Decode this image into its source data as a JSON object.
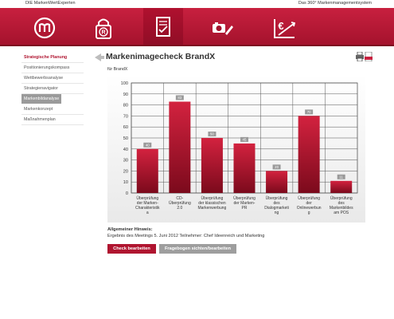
{
  "header": {
    "left_text": "DIE MarkenWertExperten",
    "right_text": "Das 360° Markenmanagementsystem"
  },
  "nav": {
    "items": [
      {
        "icon": "brand-m-icon"
      },
      {
        "icon": "registered-lock-icon"
      },
      {
        "icon": "checklist-icon",
        "active": true
      },
      {
        "icon": "camera-pencil-icon"
      },
      {
        "icon": "euro-growth-icon"
      }
    ]
  },
  "sidebar": {
    "items": [
      {
        "label": "Strategische Planung",
        "type": "header"
      },
      {
        "label": "Positionierungskompass"
      },
      {
        "label": "Wettbewerbsanalyse"
      },
      {
        "label": "Strategienavigator"
      },
      {
        "label": "Markenbildanalyse",
        "selected": true
      },
      {
        "label": "Markenkonzept"
      },
      {
        "label": "Maßnahmenplan"
      }
    ]
  },
  "main": {
    "title": "Markenimagecheck BrandX",
    "subtitle": "für BrandX",
    "note_title": "Allgemeiner Hinweis:",
    "note_text": "Ergebnis des Meetings 5. Juni 2012 Teilnehmer: Chef Ideenreich und Marketing",
    "buttons": {
      "primary": "Check bearbeiten",
      "secondary": "Fragebogen sichten/bearbeiten"
    }
  },
  "colors": {
    "brand": "#b01530",
    "bar_top": "#d3223f",
    "bar_bottom": "#7b0a1c",
    "badge": "#9a9a9a"
  },
  "chart_data": {
    "type": "bar",
    "ylim": [
      0,
      100
    ],
    "yticks": [
      0,
      10,
      20,
      30,
      40,
      50,
      60,
      70,
      80,
      90,
      100
    ],
    "grid": true,
    "categories": [
      [
        "Überprüfung",
        "der Marken-",
        "Charakteristik",
        "a"
      ],
      [
        "CD-",
        "Überprüfung",
        "2.0"
      ],
      [
        "Überprüfung",
        "der klassischen",
        "Markenwerbung"
      ],
      [
        "Überprüfung",
        "der Marken-",
        "PR"
      ],
      [
        "Überprüfung",
        "des",
        "Dialogmarketi",
        "ng"
      ],
      [
        "Überprüfung",
        "der",
        "Onlinewerbun",
        "g"
      ],
      [
        "Überprüfung",
        "des",
        "Markenbildes",
        "am POS"
      ]
    ],
    "values": [
      40,
      83,
      50,
      45,
      20,
      70,
      11
    ],
    "badges": [
      "40",
      "83",
      "50",
      "45",
      "20",
      "70",
      "11"
    ]
  }
}
